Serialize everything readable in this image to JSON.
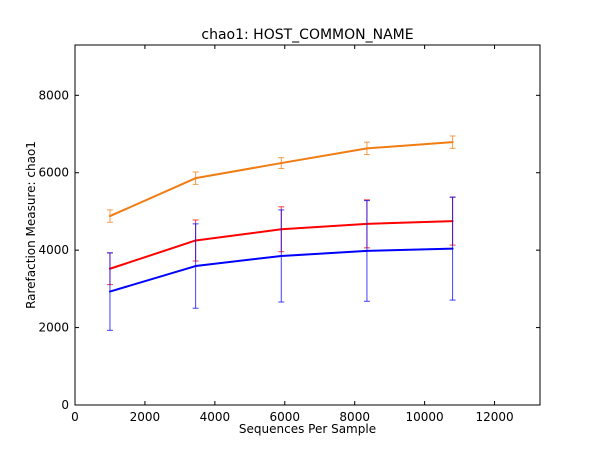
{
  "chart_data": {
    "type": "line",
    "title": "chao1: HOST_COMMON_NAME",
    "xlabel": "Sequences Per Sample",
    "ylabel": "Rarefaction Measure: chao1",
    "xlim": [
      0,
      13300
    ],
    "ylim": [
      0,
      9300
    ],
    "xticks": [
      0,
      2000,
      4000,
      6000,
      8000,
      10000,
      12000
    ],
    "yticks": [
      0,
      2000,
      4000,
      6000,
      8000
    ],
    "grid": false,
    "legend": "none",
    "x": [
      1000,
      3450,
      5900,
      8350,
      10800
    ],
    "series": [
      {
        "color": "#f07c12",
        "values": [
          4880,
          5860,
          6250,
          6630,
          6790
        ],
        "errors": [
          160,
          160,
          140,
          160,
          160
        ]
      },
      {
        "color": "#ff0000",
        "values": [
          3520,
          4250,
          4540,
          4680,
          4750
        ],
        "errors": [
          410,
          530,
          580,
          620,
          620
        ]
      },
      {
        "color": "#0000ff",
        "values": [
          2930,
          3590,
          3850,
          3980,
          4040
        ],
        "errors": [
          1000,
          1090,
          1190,
          1300,
          1330
        ]
      }
    ]
  }
}
